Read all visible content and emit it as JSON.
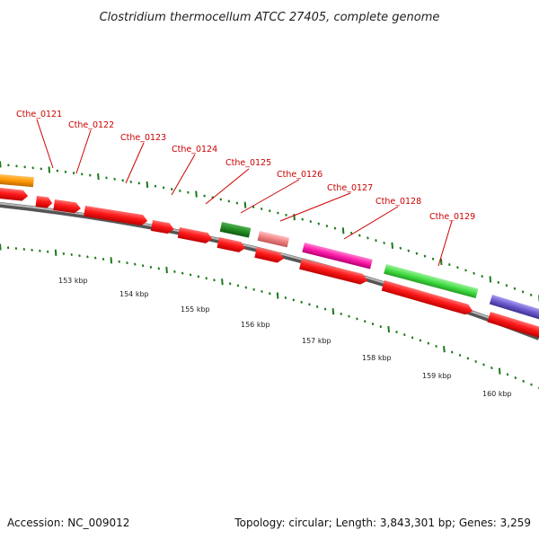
{
  "title": "Clostridium thermocellum ATCC 27405, complete genome",
  "footer": {
    "accession": "Accession: NC_009012",
    "summary": "Topology: circular; Length: 3,843,301 bp; Genes: 3,259"
  },
  "genes": [
    {
      "label": "Cthe_0121"
    },
    {
      "label": "Cthe_0122"
    },
    {
      "label": "Cthe_0123"
    },
    {
      "label": "Cthe_0124"
    },
    {
      "label": "Cthe_0125"
    },
    {
      "label": "Cthe_0126"
    },
    {
      "label": "Cthe_0127"
    },
    {
      "label": "Cthe_0128"
    },
    {
      "label": "Cthe_0129"
    }
  ],
  "kbp_labels": [
    "153 kbp",
    "154 kbp",
    "155 kbp",
    "156 kbp",
    "157 kbp",
    "158 kbp",
    "159 kbp",
    "160 kbp"
  ],
  "colors": {
    "cds_red": "#ff1a1a",
    "orange": "#ff9900",
    "dark_green": "#228b22",
    "light_pink": "#f08080",
    "magenta": "#ff1aa8",
    "green": "#44dd44",
    "purple": "#6a5acd",
    "backbone": "#888888",
    "tick_green": "#1a7a1a",
    "label_red": "#cc0000"
  }
}
